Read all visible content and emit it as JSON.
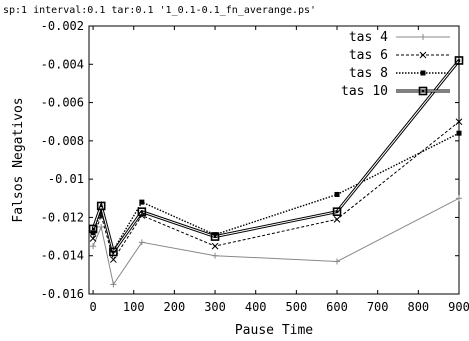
{
  "chart_data": {
    "type": "line",
    "title": "sp:1 interval:0.1 tar:0.1 '1_0.1-0.1_fn_averange.ps'",
    "xlabel": "Pause Time",
    "ylabel": "Falsos Negativos",
    "xlim": [
      -10,
      900
    ],
    "ylim": [
      -0.016,
      -0.002
    ],
    "x_ticks": [
      0,
      100,
      200,
      300,
      400,
      500,
      600,
      700,
      800,
      900
    ],
    "x_tick_labels": [
      "0",
      "100",
      "200",
      "300",
      "400",
      "500",
      "600",
      "700",
      "800",
      "900"
    ],
    "y_ticks": [
      -0.016,
      -0.014,
      -0.012,
      -0.01,
      -0.008,
      -0.006,
      -0.004,
      -0.002
    ],
    "y_tick_labels": [
      "-0.016",
      "-0.014",
      "-0.012",
      "-0.01",
      "-0.008",
      "-0.006",
      "-0.004",
      "-0.002"
    ],
    "grid": false,
    "legend_position": "top-right",
    "x": [
      0,
      20,
      50,
      120,
      300,
      600,
      900
    ],
    "series": [
      {
        "name": "tas 4",
        "values": [
          -0.0135,
          -0.0125,
          -0.0155,
          -0.0133,
          -0.014,
          -0.0143,
          -0.011
        ],
        "marker": "plus",
        "dash": "solid",
        "color": "#888888",
        "width": 1
      },
      {
        "name": "tas 6",
        "values": [
          -0.0131,
          -0.0119,
          -0.0142,
          -0.0119,
          -0.0135,
          -0.0121,
          -0.007
        ],
        "marker": "cross",
        "dash": "dashed",
        "color": "#000000",
        "width": 1
      },
      {
        "name": "tas 8",
        "values": [
          -0.0128,
          -0.0117,
          -0.0137,
          -0.0112,
          -0.0129,
          -0.0108,
          -0.0076
        ],
        "marker": "square",
        "dash": "dotted",
        "color": "#000000",
        "width": 1.4
      },
      {
        "name": "tas 10",
        "values": [
          -0.0126,
          -0.0114,
          -0.0138,
          -0.0117,
          -0.013,
          -0.0117,
          -0.0038
        ],
        "marker": "box",
        "dash": "double",
        "color": "#000000",
        "width": 1
      }
    ]
  }
}
